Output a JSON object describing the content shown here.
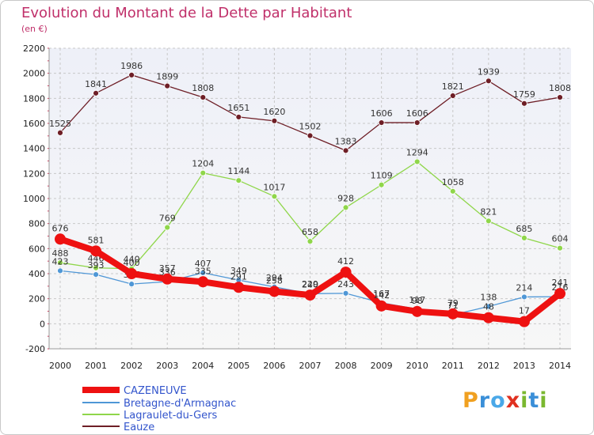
{
  "chart_data": {
    "type": "line",
    "title": "Evolution du Montant de la Dette par Habitant",
    "subtitle": "(en €)",
    "xlabel": "",
    "ylabel": "",
    "categories": [
      "2000",
      "2001",
      "2002",
      "2003",
      "2004",
      "2005",
      "2006",
      "2007",
      "2008",
      "2009",
      "2010",
      "2011",
      "2012",
      "2013",
      "2014"
    ],
    "ylim": [
      -200,
      2200
    ],
    "yticks": [
      -200,
      0,
      200,
      400,
      600,
      800,
      1000,
      1200,
      1400,
      1600,
      1800,
      2000,
      2200
    ],
    "grid": true,
    "legend_position": "bottom-left",
    "series": [
      {
        "name": "CAZENEUVE",
        "color": "#ee1111",
        "values": [
          676,
          581,
          400,
          357,
          335,
          291,
          258,
          229,
          412,
          142,
          98,
          79,
          48,
          17,
          241
        ]
      },
      {
        "name": "Bretagne-d'Armagnac",
        "color": "#4f97d6",
        "values": [
          423,
          393,
          317,
          336,
          407,
          349,
          294,
          240,
          243,
          167,
          117,
          71,
          138,
          214,
          216
        ]
      },
      {
        "name": "Lagraulet-du-Gers",
        "color": "#8fd64a",
        "values": [
          488,
          446,
          440,
          769,
          1204,
          1144,
          1017,
          658,
          928,
          1109,
          1294,
          1058,
          821,
          685,
          604
        ]
      },
      {
        "name": "Eauze",
        "color": "#6e1e26",
        "values": [
          1525,
          1841,
          1986,
          1899,
          1808,
          1651,
          1620,
          1502,
          1383,
          1606,
          1606,
          1821,
          1939,
          1759,
          1808
        ]
      }
    ]
  },
  "logo": {
    "p": "P",
    "r": "r",
    "o": "o",
    "x": "x",
    "i": "i",
    "t": "t",
    "i2": "i"
  }
}
